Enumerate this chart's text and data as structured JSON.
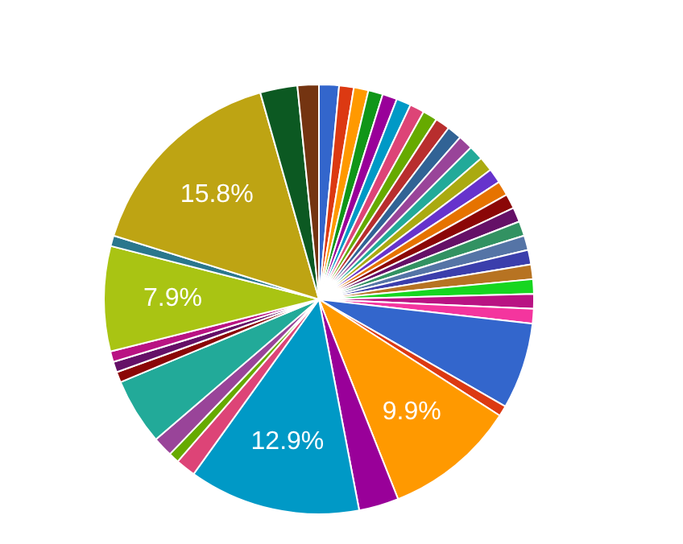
{
  "chart_data": {
    "type": "pie",
    "categories": [
      null,
      null,
      null,
      null,
      null,
      null,
      null,
      null,
      null,
      null,
      null,
      null,
      null,
      null,
      null,
      null,
      null,
      null,
      null,
      null,
      null,
      null,
      null,
      null,
      null,
      null,
      null,
      null,
      null,
      null,
      null,
      null,
      null,
      null,
      null,
      null,
      null,
      null,
      null,
      null,
      null
    ],
    "values": [
      1.5,
      1.1,
      1.1,
      1.1,
      1.1,
      1.1,
      1.1,
      1.1,
      1.1,
      1.1,
      1.1,
      1.1,
      1.1,
      1.1,
      1.1,
      1.1,
      1.1,
      1.1,
      1.1,
      1.1,
      1.1,
      1.1,
      1.1,
      1.1,
      6.5,
      0.8,
      9.9,
      3.0,
      12.9,
      1.5,
      0.8,
      1.5,
      5.0,
      0.8,
      0.8,
      0.8,
      7.9,
      0.8,
      15.8,
      2.8,
      1.6
    ],
    "colors": [
      "#3366cc",
      "#dc3912",
      "#ff9900",
      "#109618",
      "#990099",
      "#0099c6",
      "#dd4477",
      "#66aa00",
      "#b82e2e",
      "#316395",
      "#994499",
      "#22aa99",
      "#aaaa11",
      "#6633cc",
      "#e67300",
      "#8b0707",
      "#651067",
      "#329262",
      "#5574a6",
      "#3b3eac",
      "#b77322",
      "#16d620",
      "#b91383",
      "#f4359e",
      "#3366cc",
      "#dc3912",
      "#ff9900",
      "#990099",
      "#0099c6",
      "#dd4477",
      "#66aa00",
      "#994499",
      "#22aa99",
      "#8b0707",
      "#651067",
      "#b91383",
      "#a9c413",
      "#2a778d",
      "#bea413",
      "#0c5922",
      "#743411"
    ],
    "value_labels": [
      null,
      null,
      null,
      null,
      null,
      null,
      null,
      null,
      null,
      null,
      null,
      null,
      null,
      null,
      null,
      null,
      null,
      null,
      null,
      null,
      null,
      null,
      null,
      null,
      null,
      null,
      "9.9%",
      null,
      "12.9%",
      null,
      null,
      null,
      null,
      null,
      null,
      null,
      "7.9%",
      null,
      "15.8%",
      null,
      null
    ],
    "legend": false
  }
}
